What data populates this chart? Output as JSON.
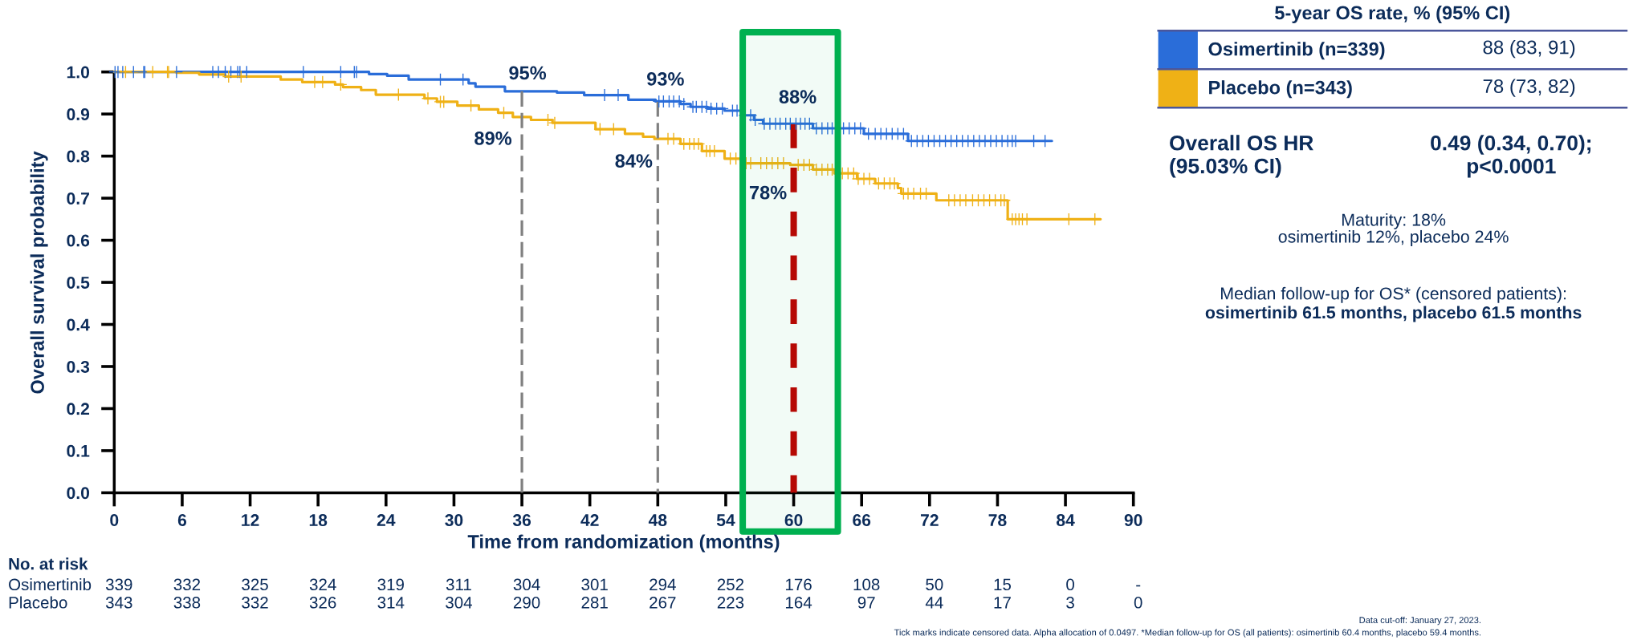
{
  "chart_data": [
    {
      "type": "step",
      "xlabel": "Time from randomization (months)",
      "ylabel": "Overall survival probability",
      "legend_title": "5-year OS rate, % (95% CI)",
      "legend": "top right",
      "xlim": [
        0,
        90
      ],
      "xticks": [
        0,
        6,
        12,
        18,
        24,
        30,
        36,
        42,
        48,
        54,
        60,
        66,
        72,
        78,
        84,
        90
      ],
      "ylim": [
        0,
        1
      ],
      "yticks": [
        {
          "value": 0,
          "label": "0.0"
        },
        0.1,
        0.2,
        0.3,
        0.4,
        0.5,
        0.6,
        0.7,
        0.8,
        0.9,
        {
          "value": 1,
          "label": "1.0"
        }
      ],
      "series": [
        {
          "name": "Osimertinib (n=339)",
          "color": "#2a6dd9",
          "x": [
            0,
            22.5,
            24.1,
            26.0,
            31.3,
            31.9,
            34.5,
            39.1,
            41.5,
            45.4,
            47.8,
            50.0,
            50.9,
            52.4,
            53.9,
            55.5,
            56.5,
            57.3,
            61.7,
            66.2,
            70.1,
            82.8
          ],
          "values": [
            1.0,
            0.995,
            0.991,
            0.982,
            0.973,
            0.965,
            0.954,
            0.951,
            0.945,
            0.934,
            0.93,
            0.924,
            0.917,
            0.913,
            0.908,
            0.897,
            0.886,
            0.877,
            0.866,
            0.853,
            0.836,
            0.836
          ]
        },
        {
          "name": "Placebo (n=343)",
          "color": "#efb116",
          "x": [
            0,
            5.5,
            7.5,
            9.8,
            14.7,
            16.6,
            19.5,
            20.2,
            21.8,
            23.1,
            27.4,
            28.5,
            30.3,
            32.2,
            33.9,
            35.2,
            36.8,
            38.7,
            42.5,
            45.1,
            46.7,
            47.7,
            50.0,
            51.9,
            53.9,
            55.5,
            59.7,
            61.7,
            63.6,
            65.6,
            67.2,
            69.2,
            69.5,
            72.6,
            78.9,
            87.1
          ],
          "values": [
            1.0,
            0.998,
            0.994,
            0.989,
            0.982,
            0.976,
            0.97,
            0.964,
            0.957,
            0.946,
            0.937,
            0.929,
            0.92,
            0.911,
            0.903,
            0.893,
            0.886,
            0.879,
            0.864,
            0.853,
            0.846,
            0.841,
            0.829,
            0.812,
            0.794,
            0.783,
            0.779,
            0.768,
            0.759,
            0.746,
            0.735,
            0.724,
            0.711,
            0.695,
            0.65,
            0.65
          ]
        },
        {
          "type": "scatter",
          "color": "#2a6dd9",
          "marker": "cross",
          "x": [
            0.07,
            0.33,
            0.75,
            1.7,
            2.6,
            2.7,
            5.5,
            8.7,
            9.2,
            9.8,
            10.3,
            10.9,
            11.1,
            11.7,
            16.7,
            20.0,
            21.2,
            21.4,
            28.8,
            30.8,
            43.3,
            44.5,
            48.1,
            48.5,
            49.0,
            49.4,
            49.9,
            50.3,
            51.1,
            51.4,
            51.9,
            52.3,
            52.7,
            53.2,
            53.7,
            54.6,
            55.0,
            55.7,
            56.2,
            56.6,
            57.4,
            57.9,
            58.4,
            58.8,
            59.3,
            59.7,
            60.2,
            60.6,
            61.0,
            61.4,
            62.0,
            62.5,
            63.0,
            63.4,
            64.4,
            64.9,
            65.4,
            65.9,
            66.6,
            67.2,
            67.7,
            68.2,
            68.7,
            69.2,
            69.7,
            70.4,
            70.9,
            71.4,
            71.9,
            72.4,
            72.9,
            73.4,
            73.9,
            74.4,
            74.9,
            75.4,
            75.9,
            76.4,
            76.9,
            77.4,
            77.9,
            78.4,
            78.9,
            79.3,
            79.6,
            81.2,
            82.2
          ],
          "values": [
            1.0,
            1.0,
            1.0,
            1.0,
            1.0,
            1.0,
            1.0,
            1.0,
            1.0,
            1.0,
            1.0,
            1.0,
            1.0,
            1.0,
            1.0,
            1.0,
            1.0,
            1.0,
            0.982,
            0.982,
            0.945,
            0.945,
            0.93,
            0.93,
            0.93,
            0.93,
            0.93,
            0.924,
            0.917,
            0.917,
            0.917,
            0.917,
            0.913,
            0.913,
            0.913,
            0.908,
            0.908,
            0.897,
            0.897,
            0.886,
            0.877,
            0.877,
            0.877,
            0.877,
            0.877,
            0.877,
            0.877,
            0.877,
            0.877,
            0.877,
            0.866,
            0.866,
            0.866,
            0.866,
            0.866,
            0.866,
            0.866,
            0.866,
            0.853,
            0.853,
            0.853,
            0.853,
            0.853,
            0.853,
            0.853,
            0.836,
            0.836,
            0.836,
            0.836,
            0.836,
            0.836,
            0.836,
            0.836,
            0.836,
            0.836,
            0.836,
            0.836,
            0.836,
            0.836,
            0.836,
            0.836,
            0.836,
            0.836,
            0.836,
            0.836,
            0.836,
            0.836
          ]
        },
        {
          "type": "scatter",
          "color": "#efb116",
          "marker": "cross",
          "x": [
            1.0,
            3.4,
            4.7,
            4.8,
            10.1,
            11.2,
            17.7,
            18.4,
            20.0,
            25.1,
            27.7,
            28.8,
            29.1,
            31.5,
            34.4,
            38.3,
            38.9,
            42.9,
            44.1,
            48.9,
            49.4,
            50.3,
            50.8,
            51.2,
            51.6,
            52.3,
            52.6,
            53.0,
            54.4,
            54.9,
            55.3,
            55.8,
            56.2,
            57.1,
            57.6,
            58.1,
            58.6,
            59.1,
            60.4,
            60.9,
            61.4,
            62.0,
            62.5,
            63.0,
            63.4,
            64.3,
            64.8,
            65.3,
            65.7,
            66.2,
            66.7,
            67.5,
            68.0,
            68.5,
            68.9,
            69.7,
            70.1,
            70.6,
            71.2,
            71.7,
            73.7,
            74.2,
            74.7,
            75.2,
            75.8,
            76.3,
            76.8,
            77.3,
            77.8,
            78.3,
            78.6,
            79.3,
            79.6,
            79.9,
            80.2,
            80.6,
            84.3,
            86.6
          ],
          "values": [
            1.0,
            1.0,
            1.0,
            1.0,
            0.989,
            0.989,
            0.976,
            0.976,
            0.97,
            0.946,
            0.937,
            0.929,
            0.929,
            0.92,
            0.903,
            0.886,
            0.879,
            0.864,
            0.864,
            0.841,
            0.841,
            0.829,
            0.829,
            0.829,
            0.829,
            0.812,
            0.812,
            0.812,
            0.794,
            0.794,
            0.794,
            0.783,
            0.783,
            0.783,
            0.783,
            0.783,
            0.783,
            0.783,
            0.779,
            0.779,
            0.779,
            0.768,
            0.768,
            0.768,
            0.768,
            0.759,
            0.759,
            0.759,
            0.746,
            0.746,
            0.746,
            0.735,
            0.735,
            0.735,
            0.735,
            0.711,
            0.711,
            0.711,
            0.711,
            0.711,
            0.695,
            0.695,
            0.695,
            0.695,
            0.695,
            0.695,
            0.695,
            0.695,
            0.695,
            0.695,
            0.695,
            0.65,
            0.65,
            0.65,
            0.65,
            0.65,
            0.65,
            0.65
          ]
        }
      ],
      "ref_lines": [
        {
          "axis": "x",
          "value": 36,
          "color": "#808080",
          "line_style": "dashed"
        },
        {
          "axis": "x",
          "value": 48,
          "color": "#808080",
          "line_style": "dashed"
        },
        {
          "axis": "x",
          "value": 60,
          "color": "#c00000",
          "line_style": "dashed"
        }
      ],
      "bands": [
        {
          "axis": "x",
          "from": 55.5,
          "to": 63.9,
          "color": "#00b050"
        }
      ],
      "annotations": [
        {
          "text": "95%",
          "x": 36,
          "y": 0.95
        },
        {
          "text": "89%",
          "x": 36,
          "y": 0.89
        },
        {
          "text": "93%",
          "x": 48,
          "y": 0.93
        },
        {
          "text": "84%",
          "x": 48,
          "y": 0.84
        },
        {
          "text": "88%",
          "x": 60,
          "y": 0.88
        },
        {
          "text": "78%",
          "x": 60,
          "y": 0.78
        },
        "88 (83, 91)",
        "78 (73, 82)",
        "Overall OS HR\n(95.03% CI)",
        "0.49 (0.34, 0.70);\np<0.0001",
        "Maturity: 18%\nosimertinib 12%, placebo 24%",
        "Median follow-up for OS* (censored patients):",
        "osimertinib 61.5 months, placebo 61.5 months",
        "Data cut-off: January 27, 2023.",
        "Tick marks indicate censored data. Alpha allocation of 0.0497. *Median follow-up for OS (all patients): osimertinib 60.4 months, placebo 59.4 months."
      ]
    },
    {
      "type": "other",
      "title": "No. at risk",
      "annotations": [
        "Osimertinib",
        "339",
        "332",
        "325",
        "324",
        "319",
        "311",
        "304",
        "301",
        "294",
        "252",
        "176",
        "108",
        "50",
        "15",
        "0",
        "-",
        "Placebo",
        "343",
        "338",
        "332",
        "326",
        "314",
        "304",
        "290",
        "281",
        "267",
        "223",
        "164",
        "97",
        "44",
        "17",
        "3",
        "0"
      ]
    }
  ]
}
